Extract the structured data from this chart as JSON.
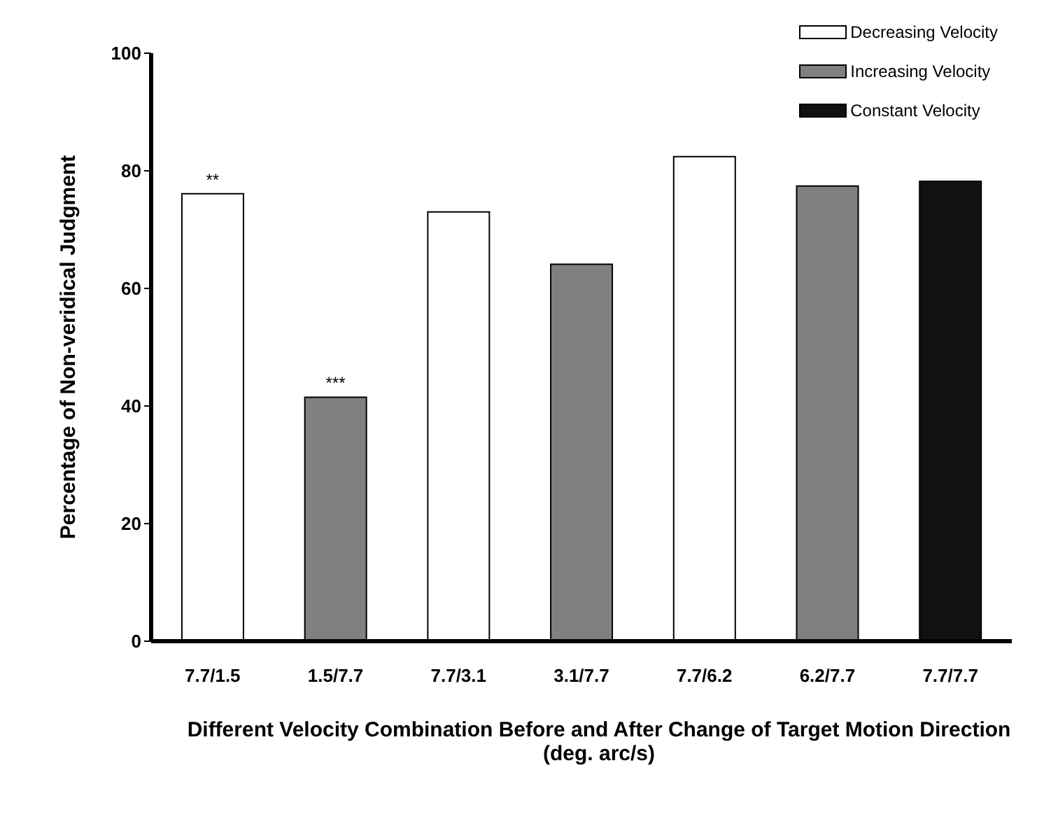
{
  "chart_data": {
    "type": "bar",
    "xlabel": "Different Velocity Combination Before and After Change of Target Motion Direction (deg. arc/s)",
    "ylabel": "Percentage of Non-veridical Judgment",
    "categories": [
      "7.7/1.5",
      "1.5/7.7",
      "7.7/3.1",
      "3.1/7.7",
      "7.7/6.2",
      "6.2/7.7",
      "7.7/7.7"
    ],
    "series": [
      {
        "name": "Decreasing Velocity",
        "color": "#ffffff",
        "values": [
          76.1,
          null,
          73.0,
          null,
          82.4,
          null,
          null
        ]
      },
      {
        "name": "Increasing Velocity",
        "color": "#808080",
        "values": [
          null,
          41.5,
          null,
          64.1,
          null,
          77.4,
          null
        ]
      },
      {
        "name": "Constant Velocity",
        "color": "#111111",
        "values": [
          null,
          null,
          null,
          null,
          null,
          null,
          78.2
        ]
      }
    ],
    "ylim": [
      0,
      100
    ],
    "yticks": [
      0,
      20,
      40,
      60,
      80,
      100
    ],
    "legend": "top right",
    "annotations": [
      {
        "text": "**",
        "x": "7.7/1.5",
        "y": 76.1
      },
      {
        "text": "***",
        "x": "1.5/7.7",
        "y": 41.5
      }
    ]
  }
}
